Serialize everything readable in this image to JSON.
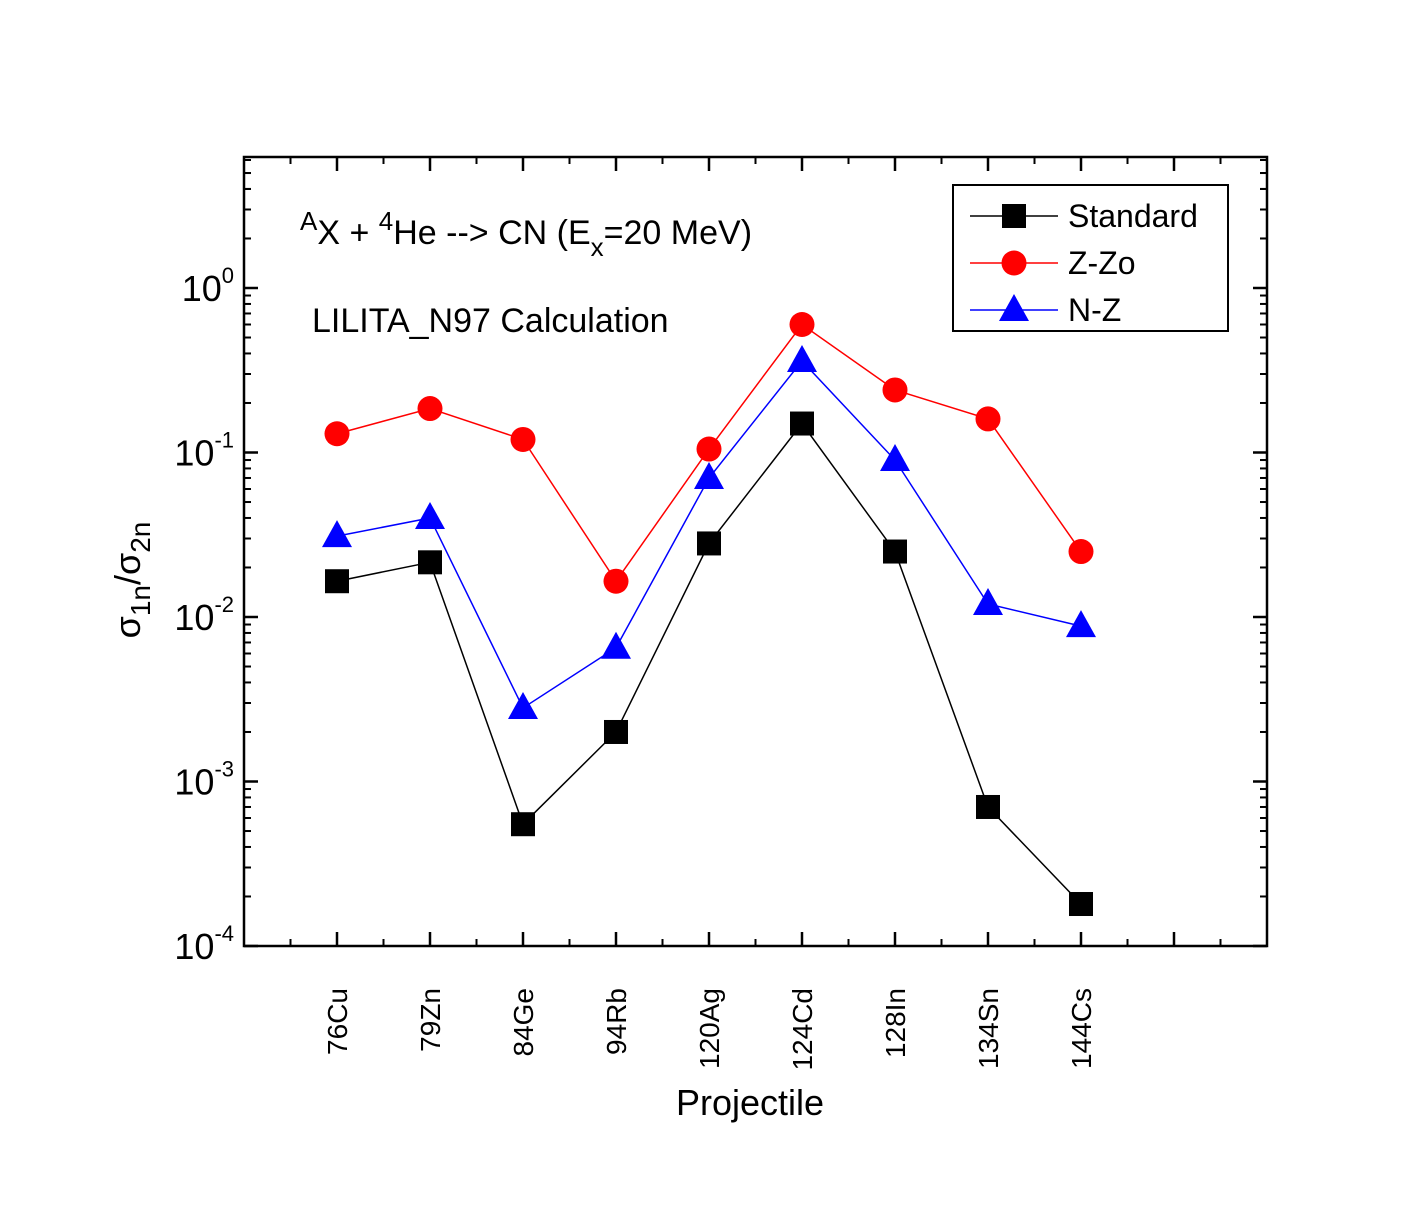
{
  "chart_data": {
    "type": "line",
    "y_scale": "log",
    "ylim": [
      0.0001,
      5
    ],
    "xlabel": "Projectile",
    "ylabel": {
      "sigma1": "σ",
      "sub1": "1n",
      "slash": "/",
      "sigma2": "σ",
      "sub2": "2n"
    },
    "categories": [
      "76Cu",
      "79Zn",
      "84Ge",
      "94Rb",
      "120Ag",
      "124Cd",
      "128In",
      "134Sn",
      "144Cs"
    ],
    "y_ticks": [
      {
        "value": 1,
        "base": "10",
        "exp": "0"
      },
      {
        "value": 0.1,
        "base": "10",
        "exp": "-1"
      },
      {
        "value": 0.01,
        "base": "10",
        "exp": "-2"
      },
      {
        "value": 0.001,
        "base": "10",
        "exp": "-3"
      },
      {
        "value": 0.0001,
        "base": "10",
        "exp": "-4"
      }
    ],
    "series": [
      {
        "name": "Standard",
        "color": "#000000",
        "marker": "square",
        "values": [
          0.0165,
          0.0215,
          0.00055,
          0.002,
          0.028,
          0.15,
          0.025,
          0.0007,
          0.00018
        ]
      },
      {
        "name": "Z-Zo",
        "color": "#ff0000",
        "marker": "circle",
        "values": [
          0.13,
          0.185,
          0.12,
          0.0165,
          0.105,
          0.6,
          0.24,
          0.16,
          0.025
        ]
      },
      {
        "name": "N-Z",
        "color": "#0000ff",
        "marker": "triangle",
        "values": [
          0.031,
          0.04,
          0.0028,
          0.0065,
          0.07,
          0.36,
          0.09,
          0.012,
          0.0088
        ]
      }
    ],
    "legend_position": "top-right",
    "annotations": {
      "reaction": {
        "sup_a": "A",
        "x": "X + ",
        "sup_4": "4",
        "he": "He --> CN (E",
        "sub_x": "x",
        "rest": "=20 MeV)"
      },
      "calc": "LILITA_N97 Calculation"
    }
  }
}
